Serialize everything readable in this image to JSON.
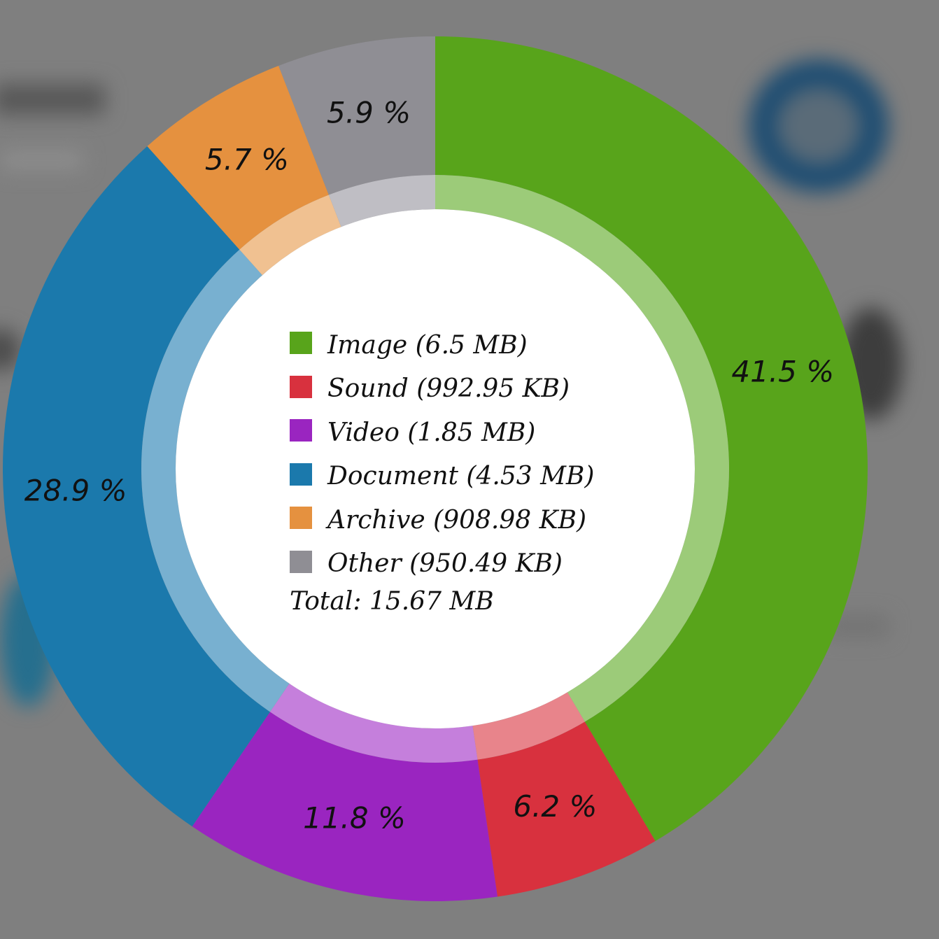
{
  "chart_data": {
    "type": "pie",
    "slices": [
      {
        "label": "Image",
        "size_label": "6.5 MB",
        "value": 41.5,
        "pct_label": "41.5 %",
        "color": "#58a41b",
        "inner_color": "#9ccb79"
      },
      {
        "label": "Sound",
        "size_label": "992.95 KB",
        "value": 6.2,
        "pct_label": "6.2 %",
        "color": "#d8313e",
        "inner_color": "#e8848b"
      },
      {
        "label": "Video",
        "size_label": "1.85 MB",
        "value": 11.8,
        "pct_label": "11.8 %",
        "color": "#9a25c0",
        "inner_color": "#c57fdc"
      },
      {
        "label": "Document",
        "size_label": "4.53 MB",
        "value": 28.9,
        "pct_label": "28.9 %",
        "color": "#1b79ac",
        "inner_color": "#78b0d0"
      },
      {
        "label": "Archive",
        "size_label": "908.98 KB",
        "value": 5.7,
        "pct_label": "5.7 %",
        "color": "#e5913f",
        "inner_color": "#f0c191"
      },
      {
        "label": "Other",
        "size_label": "950.49 KB",
        "value": 5.9,
        "pct_label": "5.9 %",
        "color": "#8f8e94",
        "inner_color": "#bfbec4"
      }
    ],
    "legend_position": "center"
  },
  "legend": {
    "items": [
      {
        "text": "Image (6.5 MB)",
        "color": "#58a41b"
      },
      {
        "text": "Sound (992.95 KB)",
        "color": "#d8313e"
      },
      {
        "text": "Video (1.85 MB)",
        "color": "#9a25c0"
      },
      {
        "text": "Document (4.53 MB)",
        "color": "#1b79ac"
      },
      {
        "text": "Archive (908.98 KB)",
        "color": "#e5913f"
      },
      {
        "text": "Other (950.49 KB)",
        "color": "#8f8e94"
      }
    ],
    "total": "Total: 15.67 MB"
  }
}
